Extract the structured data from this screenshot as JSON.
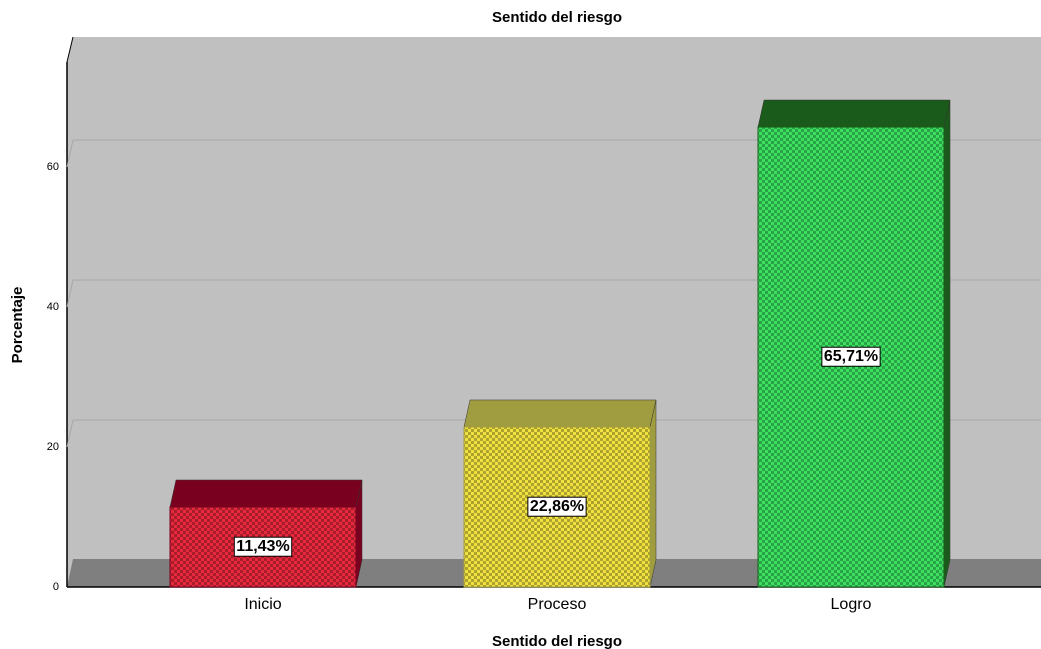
{
  "chart_data": {
    "type": "bar",
    "title": "Sentido del riesgo",
    "x_label": "Sentido del riesgo",
    "y_label": "Porcentaje",
    "categories": [
      "Inicio",
      "Proceso",
      "Logro"
    ],
    "values": [
      11.43,
      22.86,
      65.71
    ],
    "value_labels": [
      "11,43%",
      "22,86%",
      "65,71%"
    ],
    "colors": [
      "#e8283c",
      "#f0e040",
      "#3ce060"
    ],
    "top_colors": [
      "#7a0020",
      "#a09c40",
      "#1a5a1a"
    ],
    "ylim": [
      0,
      75
    ],
    "yticks": [
      0,
      20,
      40,
      60
    ],
    "grid": true
  }
}
